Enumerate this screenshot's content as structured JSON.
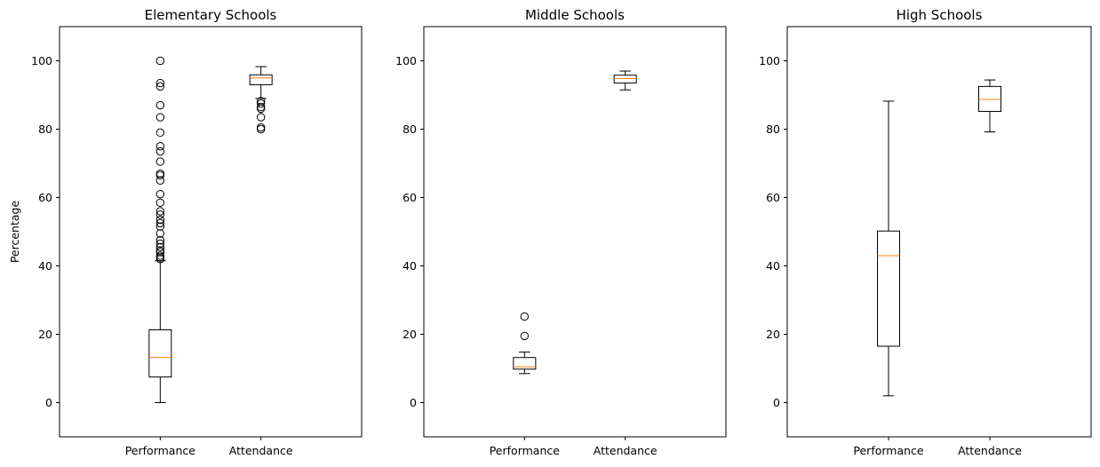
{
  "chart_data": [
    {
      "type": "box",
      "title": "Elementary Schools",
      "ylabel": "Percentage",
      "ylim": [
        -10,
        110
      ],
      "yticks": [
        0,
        20,
        40,
        60,
        80,
        100
      ],
      "categories": [
        "Performance",
        "Attendance"
      ],
      "boxes": [
        {
          "category": "Performance",
          "whisker_low": 0,
          "q1": 7.5,
          "median": 13.2,
          "q3": 21.3,
          "whisker_high": 41.5,
          "outliers": [
            42.0,
            42.5,
            43.0,
            44.0,
            44.5,
            45.5,
            46.5,
            47.5,
            49.5,
            51.5,
            52.5,
            53.5,
            55.0,
            56.0,
            58.5,
            61.0,
            65.0,
            66.5,
            67.0,
            70.5,
            73.5,
            75.0,
            79.0,
            83.5,
            87.0,
            92.5,
            93.5,
            100
          ]
        },
        {
          "category": "Attendance",
          "whisker_low": 89.0,
          "q1": 93.0,
          "median": 95.0,
          "q3": 95.9,
          "whisker_high": 98.3,
          "outliers": [
            88.2,
            87.5,
            86.5,
            86.0,
            83.5,
            80.5,
            80.0
          ]
        }
      ]
    },
    {
      "type": "box",
      "title": "Middle Schools",
      "ylabel": "",
      "ylim": [
        -10,
        110
      ],
      "yticks": [
        0,
        20,
        40,
        60,
        80,
        100
      ],
      "categories": [
        "Performance",
        "Attendance"
      ],
      "boxes": [
        {
          "category": "Performance",
          "whisker_low": 8.5,
          "q1": 9.8,
          "median": 10.5,
          "q3": 13.2,
          "whisker_high": 14.8,
          "outliers": [
            19.5,
            25.2
          ]
        },
        {
          "category": "Attendance",
          "whisker_low": 91.5,
          "q1": 93.5,
          "median": 94.8,
          "q3": 95.8,
          "whisker_high": 97.0,
          "outliers": []
        }
      ]
    },
    {
      "type": "box",
      "title": "High Schools",
      "ylabel": "",
      "ylim": [
        -10,
        110
      ],
      "yticks": [
        0,
        20,
        40,
        60,
        80,
        100
      ],
      "categories": [
        "Performance",
        "Attendance"
      ],
      "boxes": [
        {
          "category": "Performance",
          "whisker_low": 2.0,
          "q1": 16.5,
          "median": 43.0,
          "q3": 50.2,
          "whisker_high": 88.2,
          "outliers": []
        },
        {
          "category": "Attendance",
          "whisker_low": 79.2,
          "q1": 85.2,
          "median": 88.7,
          "q3": 92.5,
          "whisker_high": 94.4,
          "outliers": []
        }
      ]
    }
  ],
  "colors": {
    "box_edge": "#000000",
    "median": "#ff7f0e",
    "flier": "#000000",
    "background": "#ffffff"
  }
}
